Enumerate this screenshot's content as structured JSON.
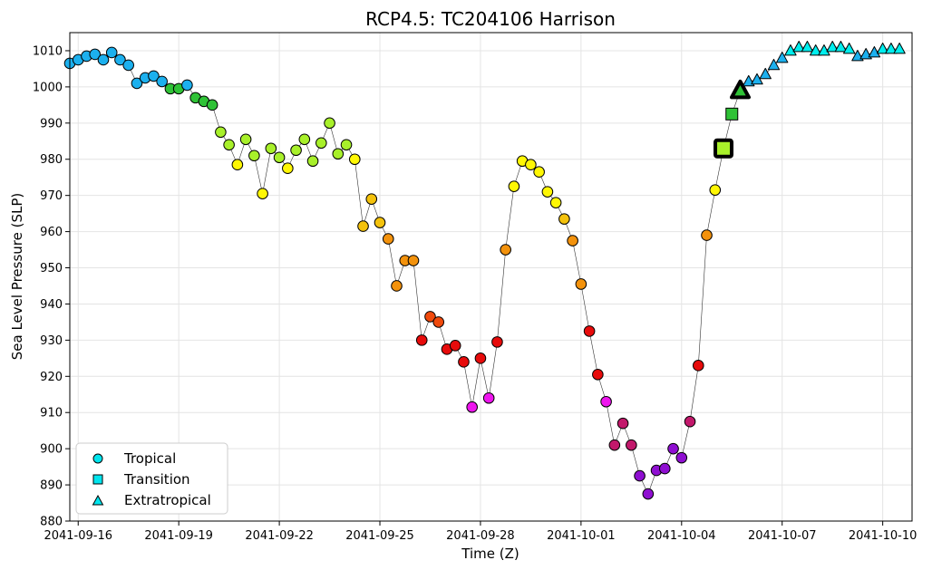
{
  "chart_data": {
    "type": "scatter",
    "title": "RCP4.5: TC204106 Harrison",
    "xlabel": "Time (Z)",
    "ylabel": "Sea Level Pressure (SLP)",
    "ylim": [
      880,
      1015
    ],
    "yticks": [
      880,
      890,
      900,
      910,
      920,
      930,
      940,
      950,
      960,
      970,
      980,
      990,
      1000,
      1010
    ],
    "x_start": "2041-09-15T18:00",
    "x_end": "2041-10-10T21:00",
    "x_step_hours": 6,
    "xticks": [
      {
        "date": "2041-09-16",
        "label": "2041-09-16"
      },
      {
        "date": "2041-09-19",
        "label": "2041-09-19"
      },
      {
        "date": "2041-09-22",
        "label": "2041-09-22"
      },
      {
        "date": "2041-09-25",
        "label": "2041-09-25"
      },
      {
        "date": "2041-09-28",
        "label": "2041-09-28"
      },
      {
        "date": "2041-10-01",
        "label": "2041-10-01"
      },
      {
        "date": "2041-10-04",
        "label": "2041-10-04"
      },
      {
        "date": "2041-10-07",
        "label": "2041-10-07"
      },
      {
        "date": "2041-10-10",
        "label": "2041-10-10"
      }
    ],
    "grid": true,
    "legend": {
      "position": "lower-left",
      "entries": [
        {
          "label": "Tropical",
          "marker": "circle",
          "color": "#00e5ee"
        },
        {
          "label": "Transition",
          "marker": "square",
          "color": "#00e5ee"
        },
        {
          "label": "Extratropical",
          "marker": "triangle",
          "color": "#00e5ee"
        }
      ]
    },
    "colors": {
      "blue": "#1cb0ee",
      "green": "#2fc236",
      "lime": "#a8f02a",
      "yellow": "#fff704",
      "gold": "#f4c20c",
      "orange": "#f3920c",
      "redorange": "#f04a0c",
      "red": "#e70b0b",
      "magenta": "#ee15ee",
      "crimson": "#c2186b",
      "violet": "#8f0fd1",
      "cyan": "#00eeee"
    },
    "series": [
      {
        "values": [
          1006.5,
          1007.5,
          1008.5,
          1009.0,
          1007.5,
          1009.5,
          1007.5,
          1006.0,
          1001.0,
          1002.5,
          1003.0,
          1001.5,
          999.5,
          999.5,
          1000.5,
          997.0,
          996.0,
          995.0,
          987.5,
          984.0,
          978.5,
          985.5,
          981.0,
          970.5,
          983.0,
          980.5,
          977.5,
          982.5,
          985.5,
          979.5,
          984.5,
          990.0,
          981.5,
          984.0,
          980.0,
          961.5,
          969.0,
          962.5,
          958.0,
          945.0,
          952.0,
          952.0,
          930.0,
          936.5,
          935.0,
          927.5,
          928.5,
          924.0,
          911.5,
          925.0,
          914.0,
          929.5,
          955.0,
          972.5,
          979.5,
          978.5,
          976.5,
          971.0,
          968.0,
          963.5,
          957.5,
          945.5,
          932.5,
          920.5,
          913.0,
          901.0,
          907.0,
          901.0,
          892.5,
          887.5,
          894.0,
          894.5,
          900.0,
          897.5,
          907.5,
          923.0,
          959.0,
          971.5,
          983.0,
          992.5,
          999.0,
          1001.5,
          1002.0,
          1003.5,
          1006.0,
          1008.0,
          1010.0,
          1011.0,
          1011.0,
          1010.0,
          1010.0,
          1011.0,
          1011.0,
          1010.5,
          1008.5,
          1009.0,
          1009.5,
          1010.5,
          1010.5,
          1010.5
        ],
        "phases": [
          "T",
          "T",
          "T",
          "T",
          "T",
          "T",
          "T",
          "T",
          "T",
          "T",
          "T",
          "T",
          "T",
          "T",
          "T",
          "T",
          "T",
          "T",
          "T",
          "T",
          "T",
          "T",
          "T",
          "T",
          "T",
          "T",
          "T",
          "T",
          "T",
          "T",
          "T",
          "T",
          "T",
          "T",
          "T",
          "T",
          "T",
          "T",
          "T",
          "T",
          "T",
          "T",
          "T",
          "T",
          "T",
          "T",
          "T",
          "T",
          "T",
          "T",
          "T",
          "T",
          "T",
          "T",
          "T",
          "T",
          "T",
          "T",
          "T",
          "T",
          "T",
          "T",
          "T",
          "T",
          "T",
          "T",
          "T",
          "T",
          "T",
          "T",
          "T",
          "T",
          "T",
          "T",
          "T",
          "T",
          "T",
          "T",
          "S",
          "S",
          "E",
          "E",
          "E",
          "E",
          "E",
          "E",
          "E",
          "E",
          "E",
          "E",
          "E",
          "E",
          "E",
          "E",
          "E",
          "E",
          "E",
          "E",
          "E",
          "E"
        ],
        "point_colors": [
          "blue",
          "blue",
          "blue",
          "blue",
          "blue",
          "blue",
          "blue",
          "blue",
          "blue",
          "blue",
          "blue",
          "blue",
          "green",
          "green",
          "blue",
          "green",
          "green",
          "green",
          "lime",
          "lime",
          "yellow",
          "lime",
          "lime",
          "yellow",
          "lime",
          "lime",
          "yellow",
          "lime",
          "lime",
          "lime",
          "lime",
          "lime",
          "lime",
          "lime",
          "yellow",
          "gold",
          "gold",
          "gold",
          "orange",
          "orange",
          "orange",
          "orange",
          "red",
          "redorange",
          "redorange",
          "red",
          "red",
          "red",
          "magenta",
          "red",
          "magenta",
          "red",
          "orange",
          "yellow",
          "yellow",
          "yellow",
          "yellow",
          "yellow",
          "yellow",
          "gold",
          "orange",
          "orange",
          "red",
          "red",
          "magenta",
          "crimson",
          "crimson",
          "crimson",
          "violet",
          "violet",
          "violet",
          "violet",
          "violet",
          "violet",
          "crimson",
          "red",
          "orange",
          "yellow",
          "lime",
          "green",
          "green",
          "blue",
          "blue",
          "blue",
          "blue",
          "blue",
          "cyan",
          "cyan",
          "cyan",
          "cyan",
          "cyan",
          "cyan",
          "cyan",
          "cyan",
          "blue",
          "blue",
          "blue",
          "cyan",
          "cyan",
          "cyan"
        ],
        "highlight_indices": [
          78,
          80
        ]
      }
    ]
  }
}
